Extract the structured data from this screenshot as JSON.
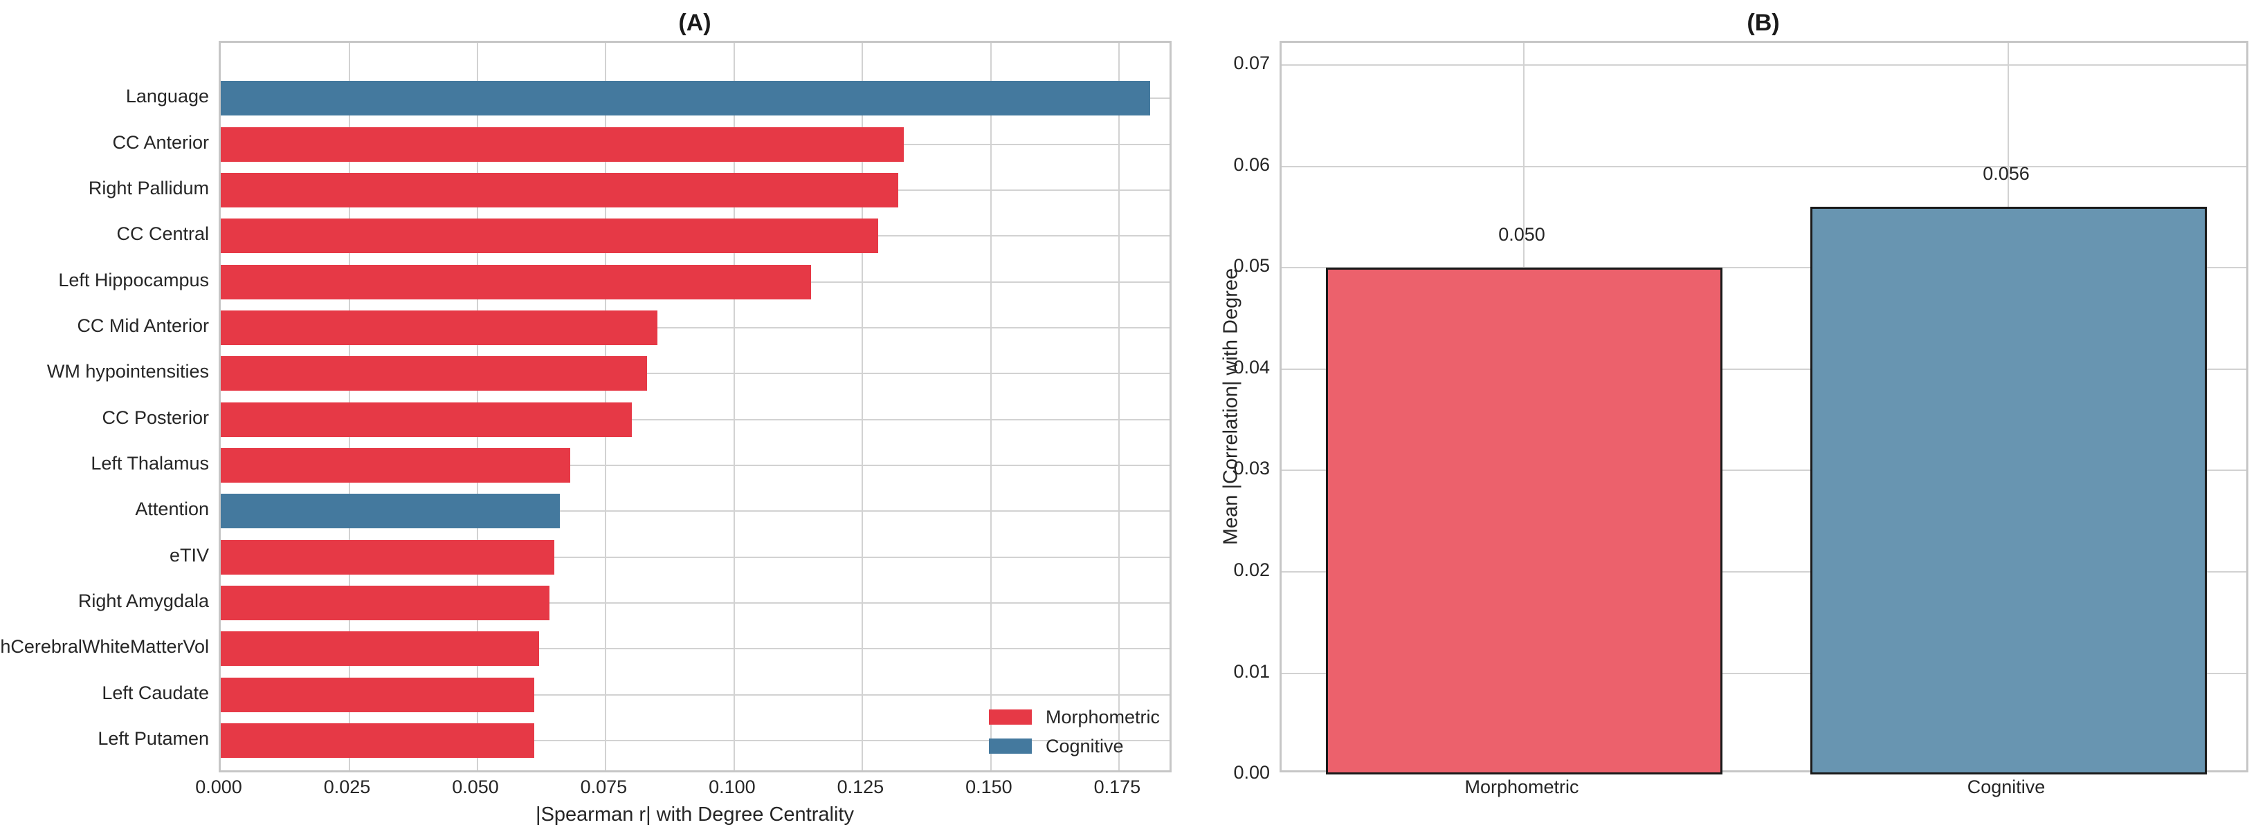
{
  "figure": {
    "background": "#ffffff",
    "grid_color": "#d2d2d2",
    "spine_color": "#c6c6c6",
    "text_color": "#262626",
    "title_color": "#1a1a1a",
    "bar_edge_color": "#1a1a1a"
  },
  "chart_data": [
    {
      "type": "bar",
      "orientation": "horizontal",
      "title": "(A)",
      "xlabel": "|Spearman r| with Degree Centrality",
      "ylabel": "",
      "grid": true,
      "xlim": [
        0,
        0.1856
      ],
      "x_ticks": [
        0.0,
        0.025,
        0.05,
        0.075,
        0.1,
        0.125,
        0.15,
        0.175
      ],
      "x_tick_labels": [
        "0.000",
        "0.025",
        "0.050",
        "0.075",
        "0.100",
        "0.125",
        "0.150",
        "0.175"
      ],
      "categories": [
        "Language",
        "CC Anterior",
        "Right Pallidum",
        "CC Central",
        "Left Hippocampus",
        "CC Mid Anterior",
        "WM hypointensities",
        "CC Posterior",
        "Left Thalamus",
        "Attention",
        "eTIV",
        "Right Amygdala",
        "rhCerebralWhiteMatterVol",
        "Left Caudate",
        "Left Putamen"
      ],
      "values": [
        0.181,
        0.133,
        0.132,
        0.128,
        0.115,
        0.085,
        0.083,
        0.08,
        0.068,
        0.066,
        0.065,
        0.064,
        0.062,
        0.061,
        0.061
      ],
      "groups": [
        "Cognitive",
        "Morphometric",
        "Morphometric",
        "Morphometric",
        "Morphometric",
        "Morphometric",
        "Morphometric",
        "Morphometric",
        "Morphometric",
        "Cognitive",
        "Morphometric",
        "Morphometric",
        "Morphometric",
        "Morphometric",
        "Morphometric"
      ],
      "group_colors": {
        "Morphometric": "#e63946",
        "Cognitive": "#44799e"
      },
      "legend": {
        "position": "lower right",
        "entries": [
          {
            "label": "Morphometric",
            "color": "#e63946"
          },
          {
            "label": "Cognitive",
            "color": "#44799e"
          }
        ]
      }
    },
    {
      "type": "bar",
      "orientation": "vertical",
      "title": "(B)",
      "xlabel": "",
      "ylabel": "Mean |Correlation| with Degree",
      "grid": true,
      "ylim": [
        0,
        0.0722
      ],
      "y_ticks": [
        0.0,
        0.01,
        0.02,
        0.03,
        0.04,
        0.05,
        0.06,
        0.07
      ],
      "y_tick_labels": [
        "0.00",
        "0.01",
        "0.02",
        "0.03",
        "0.04",
        "0.05",
        "0.06",
        "0.07"
      ],
      "categories": [
        "Morphometric",
        "Cognitive"
      ],
      "values": [
        0.05,
        0.056
      ],
      "value_labels": [
        "0.050",
        "0.056"
      ],
      "bar_colors": [
        "#ec616c",
        "#6895b1"
      ]
    }
  ]
}
